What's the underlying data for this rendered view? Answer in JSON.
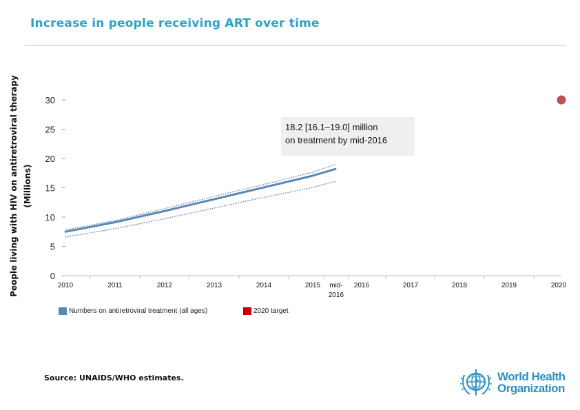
{
  "header": {
    "title": "Increase in people receiving ART over time"
  },
  "chart_data": {
    "type": "line",
    "ylabel_lines": [
      "People living with HIV on antiretroviral therapy",
      "(Millions)"
    ],
    "ylim": [
      0,
      30
    ],
    "yticks": [
      0,
      5,
      10,
      15,
      20,
      25,
      30
    ],
    "x_tick_labels": [
      "2010",
      "2011",
      "2012",
      "2013",
      "2014",
      "2015",
      "mid-2016",
      "2016",
      "2017",
      "2018",
      "2019",
      "2020"
    ],
    "grid": false,
    "series": [
      {
        "name": "Numbers on antiretroviral treatment (all ages)",
        "style": "solid",
        "color": "#5b86b5",
        "x": [
          2010,
          2011,
          2012,
          2013,
          2014,
          2015,
          2016.5
        ],
        "y": [
          7.5,
          9.1,
          11.0,
          13.0,
          15.0,
          17.0,
          18.2
        ]
      },
      {
        "name": "upper bound",
        "style": "dotted",
        "color": "#4a74b0",
        "x": [
          2010,
          2011,
          2012,
          2013,
          2014,
          2015,
          2016.5
        ],
        "y": [
          7.8,
          9.4,
          11.4,
          13.5,
          15.5,
          17.6,
          19.0
        ]
      },
      {
        "name": "lower bound",
        "style": "dotted",
        "color": "#4a74b0",
        "x": [
          2010,
          2011,
          2012,
          2013,
          2014,
          2015,
          2016.5
        ],
        "y": [
          6.6,
          8.0,
          9.7,
          11.5,
          13.3,
          15.0,
          16.1
        ]
      },
      {
        "name": "2020 target",
        "style": "point",
        "color": "#c0504d",
        "x": [
          2020
        ],
        "y": [
          30
        ]
      }
    ],
    "annotation": {
      "lines": [
        "18.2 [16.1–19.0] million",
        "on treatment by mid-2016"
      ]
    },
    "legend": [
      {
        "label": "Numbers on antiretroviral treatment (all ages)",
        "color": "#5b86b5"
      },
      {
        "label": "2020 target",
        "color": "#c00000"
      }
    ]
  },
  "footer": {
    "source": "Source: UNAIDS/WHO estimates.",
    "logo_lines": [
      "World Health",
      "Organization"
    ]
  }
}
